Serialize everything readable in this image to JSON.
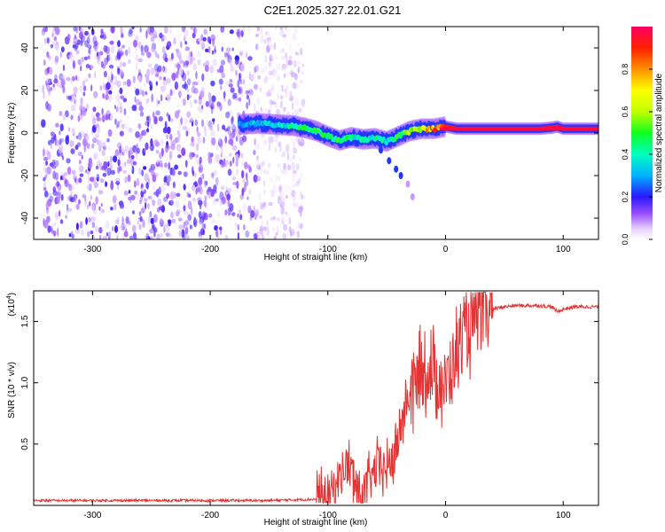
{
  "title": "C2E1.2025.327.22.01.G21",
  "chart_data": [
    {
      "type": "heatmap",
      "xlabel": "Height of straight line (km)",
      "ylabel": "Frequency (Hz)",
      "xlim": [
        -350,
        130
      ],
      "ylim": [
        -50,
        50
      ],
      "x_ticks": [
        -300,
        -200,
        -100,
        0,
        100
      ],
      "y_ticks": [
        -40,
        -20,
        0,
        20,
        40
      ],
      "colorbar": {
        "label": "Normalized spectral amplitude",
        "range": [
          0.0,
          1.0
        ],
        "ticks": [
          "0.0",
          "0.2",
          "0.4",
          "0.6",
          "0.8"
        ],
        "tick_values": [
          0.0,
          0.2,
          0.4,
          0.6,
          0.8
        ]
      },
      "noise_region": {
        "x_range": [
          -350,
          -128
        ],
        "y_range": [
          -50,
          50
        ],
        "amplitude": [
          0.0,
          0.2
        ]
      },
      "ridge": {
        "x": [
          -175,
          -160,
          -145,
          -130,
          -120,
          -110,
          -100,
          -90,
          -80,
          -70,
          -60,
          -50,
          -40,
          -30,
          -20,
          -10,
          0,
          10,
          20,
          40,
          60,
          80,
          90,
          95,
          100,
          130
        ],
        "y": [
          4,
          4.5,
          4,
          3.5,
          2.5,
          1,
          -1.5,
          -3.5,
          -2,
          -3,
          -2.5,
          -4,
          -1.5,
          1,
          2,
          2,
          3,
          2,
          2,
          2,
          2,
          2,
          2.5,
          3,
          2,
          2
        ],
        "amplitude": [
          0.3,
          0.35,
          0.35,
          0.45,
          0.5,
          0.5,
          0.45,
          0.5,
          0.45,
          0.4,
          0.45,
          0.4,
          0.55,
          0.6,
          0.75,
          0.85,
          0.9,
          0.95,
          0.97,
          0.97,
          0.97,
          0.97,
          0.95,
          0.97,
          0.97,
          0.97
        ]
      },
      "branch": {
        "x": [
          -55,
          -48,
          -42,
          -38,
          -32,
          -28
        ],
        "y": [
          -8,
          -13,
          -17,
          -20,
          -24,
          -30
        ]
      }
    },
    {
      "type": "line",
      "xlabel": "Height of straight line (km)",
      "ylabel": "SNR (10 * v/v)",
      "y_multiplier": "(x10^4)",
      "y_multiplier_base": "(x10",
      "y_multiplier_exp": "4",
      "y_multiplier_close": ")",
      "xlim": [
        -350,
        130
      ],
      "ylim": [
        0,
        1.75
      ],
      "x_ticks": [
        -300,
        -200,
        -100,
        0,
        100
      ],
      "y_ticks": [
        0.5,
        1.0,
        1.5
      ],
      "y_tick_labels": [
        "0.5",
        "1.0",
        "1.5"
      ],
      "series": [
        {
          "name": "SNR",
          "color": "#e53333",
          "x": [
            -350,
            -300,
            -250,
            -200,
            -150,
            -110,
            -100,
            -95,
            -90,
            -85,
            -80,
            -75,
            -70,
            -65,
            -60,
            -55,
            -50,
            -45,
            -40,
            -35,
            -30,
            -25,
            -20,
            -15,
            -10,
            -5,
            0,
            5,
            10,
            15,
            20,
            25,
            30,
            35,
            40,
            50,
            60,
            70,
            80,
            90,
            95,
            100,
            110,
            120,
            130
          ],
          "y": [
            0.04,
            0.04,
            0.04,
            0.04,
            0.04,
            0.05,
            0.1,
            0.15,
            0.25,
            0.35,
            0.3,
            0.15,
            0.1,
            0.2,
            0.3,
            0.35,
            0.3,
            0.4,
            0.55,
            0.8,
            0.95,
            1.05,
            1.1,
            1.15,
            1.1,
            1.05,
            1.0,
            1.15,
            1.3,
            1.4,
            1.48,
            1.53,
            1.56,
            1.58,
            1.6,
            1.62,
            1.63,
            1.63,
            1.63,
            1.62,
            1.58,
            1.6,
            1.62,
            1.62,
            1.62
          ]
        }
      ]
    }
  ],
  "colors": {
    "noise": "#6a1fdb",
    "snr_line": "#e53333"
  }
}
